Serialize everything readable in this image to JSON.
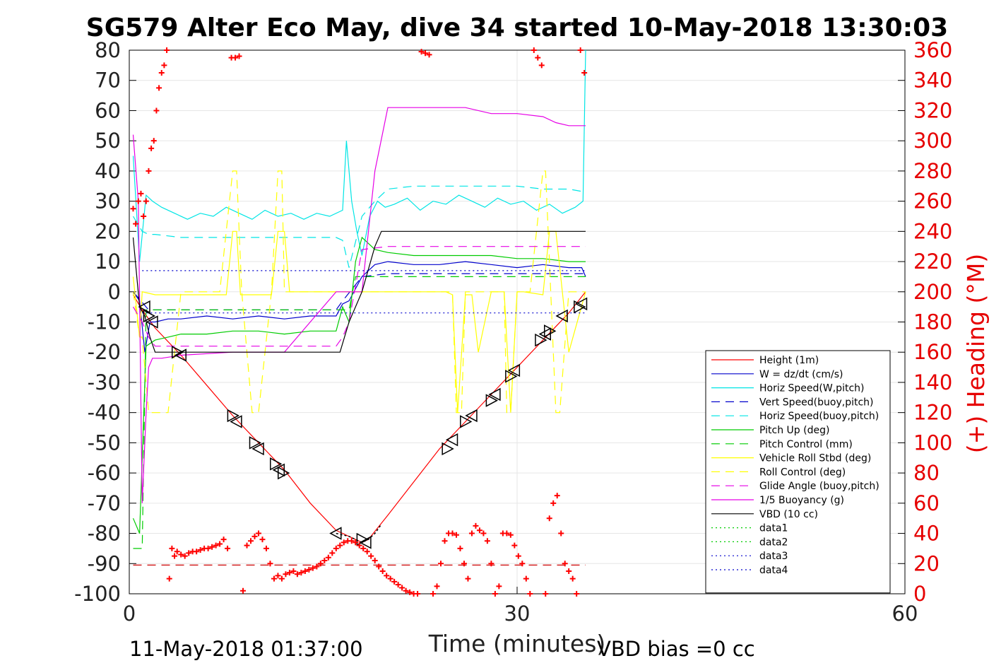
{
  "chart_data": {
    "type": "line",
    "title": "SG579 Alter Eco May, dive 34 started 10-May-2018 13:30:03",
    "xlabel": "Time (minutes)",
    "ylabel_right": "(+) Heading (°M)",
    "xlim": [
      0,
      60
    ],
    "ylim": [
      -100,
      80
    ],
    "ylim_right": [
      0,
      360
    ],
    "xticks": [
      "0",
      "30",
      "60"
    ],
    "yticks_left": [
      "80",
      "70",
      "60",
      "50",
      "40",
      "30",
      "20",
      "10",
      "0",
      "-10",
      "-20",
      "-30",
      "-40",
      "-50",
      "-60",
      "-70",
      "-80",
      "-90",
      "-100"
    ],
    "yticks_right": [
      "360",
      "340",
      "320",
      "300",
      "280",
      "260",
      "240",
      "220",
      "200",
      "180",
      "160",
      "140",
      "120",
      "100",
      "80",
      "60",
      "40",
      "20",
      "0"
    ],
    "grid": true,
    "legend_position": "lower-right",
    "footer_left": "11-May-2018 01:37:00",
    "footer_right": "VBD bias =0 cc",
    "series": [
      {
        "name": "Height (1m)",
        "color": "#ff0000",
        "dash": "",
        "x": [
          0.3,
          1,
          2,
          4,
          6,
          8,
          10,
          12,
          14,
          16,
          18,
          18.5,
          20,
          22,
          24,
          26,
          28,
          30,
          32,
          34,
          35.3
        ],
        "y": [
          -1,
          -6,
          -12,
          -21,
          -31,
          -41,
          -50,
          -59,
          -70,
          -79,
          -83,
          -82,
          -74,
          -63,
          -52,
          -43,
          -34,
          -25,
          -16,
          -7,
          0
        ]
      },
      {
        "name": "W = dz/dt (cm/s)",
        "color": "#0000cc",
        "dash": "",
        "x": [
          0.3,
          0.8,
          1.2,
          1.6,
          2,
          3,
          4,
          6,
          8,
          10,
          12,
          14,
          16,
          16.5,
          17,
          18,
          19,
          20,
          22,
          24,
          26,
          28,
          30,
          32,
          34,
          35,
          35.3
        ],
        "y": [
          0,
          -3,
          -20,
          -10,
          -10,
          -9,
          -9,
          -8,
          -9,
          -8,
          -9,
          -8,
          -8,
          -4,
          -3,
          5,
          9,
          10,
          9,
          9,
          10,
          9,
          8,
          9,
          8,
          8,
          5
        ]
      },
      {
        "name": "Horiz Speed(W,pitch)",
        "color": "#00e5e5",
        "dash": "",
        "x": [
          0.3,
          0.8,
          1.3,
          1.8,
          2.5,
          3.5,
          4.5,
          5.5,
          6.5,
          7.5,
          8.5,
          9.5,
          10.5,
          11.5,
          12.5,
          13.5,
          14.5,
          15.5,
          16.5,
          16.8,
          17.2,
          17.6,
          18,
          18.6,
          19.2,
          19.8,
          20.5,
          21.5,
          22.5,
          23.5,
          24.5,
          25.5,
          26.5,
          27.5,
          28.5,
          29.5,
          30.5,
          31.5,
          32.5,
          33.5,
          34.5,
          35.1,
          35.3
        ],
        "y": [
          45,
          10,
          32,
          30,
          28,
          26,
          24,
          26,
          25,
          28,
          26,
          24,
          27,
          25,
          26,
          24,
          26,
          25,
          27,
          50,
          30,
          20,
          12,
          25,
          30,
          28,
          29,
          31,
          27,
          30,
          29,
          32,
          30,
          28,
          31,
          29,
          30,
          27,
          29,
          26,
          28,
          30,
          80
        ]
      },
      {
        "name": "Vert Speed(buoy,pitch)",
        "color": "#0000cc",
        "dash": "12,8",
        "x": [
          0.3,
          1.5,
          2,
          4,
          8,
          12,
          16,
          16.5,
          18,
          20,
          24,
          28,
          32,
          35.3
        ],
        "y": [
          0,
          -6,
          -6,
          -6,
          -6,
          -6,
          -6,
          -3,
          5,
          6,
          6,
          6,
          6,
          6
        ]
      },
      {
        "name": "Horiz Speed(buoy,pitch)",
        "color": "#00e5e5",
        "dash": "12,8",
        "x": [
          0.3,
          1,
          1.5,
          2,
          4,
          8,
          12,
          16,
          16.5,
          17,
          18,
          19,
          20,
          22,
          24,
          26,
          28,
          30,
          32,
          34,
          35.3
        ],
        "y": [
          25,
          20,
          19,
          19,
          18,
          18,
          18,
          18,
          17,
          8,
          25,
          30,
          34,
          35,
          35,
          35,
          35,
          35,
          34,
          34,
          33
        ]
      },
      {
        "name": "Pitch Up (deg)",
        "color": "#00cc00",
        "dash": "",
        "x": [
          0.3,
          0.8,
          1.3,
          2,
          3,
          4,
          6,
          8,
          10,
          12,
          14,
          16,
          16.5,
          17,
          17.5,
          18,
          19,
          20,
          22,
          24,
          26,
          28,
          30,
          32,
          34,
          35,
          35.3
        ],
        "y": [
          -75,
          -80,
          -18,
          -16,
          -15,
          -14,
          -14,
          -13,
          -13,
          -14,
          -13,
          -13,
          -5,
          -10,
          10,
          18,
          14,
          13,
          12,
          12,
          12,
          12,
          11,
          11,
          10,
          10,
          10
        ]
      },
      {
        "name": "Pitch Control (mm)",
        "color": "#00cc00",
        "dash": "12,8",
        "x": [
          0.3,
          0.6,
          1,
          1.3,
          1.8,
          4,
          8,
          12,
          16,
          16.5,
          17,
          17.5,
          18,
          19,
          24,
          30,
          35.3
        ],
        "y": [
          -85,
          -85,
          -85,
          -6,
          -6,
          -6,
          -6,
          -6,
          -6,
          -6,
          -6,
          5,
          5,
          5,
          5,
          5,
          5
        ]
      },
      {
        "name": "Vehicle Roll Stbd (deg)",
        "color": "#ffff00",
        "dash": "",
        "x": [
          0.3,
          0.8,
          1,
          2,
          3,
          4,
          6,
          7.5,
          8,
          8.3,
          8.6,
          9,
          11,
          11.5,
          12,
          12.4,
          12.8,
          14,
          16,
          18,
          20,
          22,
          24,
          24.5,
          25,
          25.4,
          26,
          26.5,
          27,
          28,
          29,
          29.5,
          30,
          30.5,
          32,
          32.5,
          33,
          34,
          35.3
        ],
        "y": [
          5,
          -15,
          0,
          -1,
          -1,
          -1,
          -1,
          -1,
          20,
          20,
          -1,
          -1,
          -1,
          20,
          20,
          0,
          0,
          0,
          0,
          0,
          0,
          0,
          0,
          0,
          -1,
          -40,
          -1,
          -1,
          -20,
          0,
          0,
          -40,
          0,
          0,
          -1,
          20,
          20,
          -20,
          0
        ]
      },
      {
        "name": "Roll Control (deg)",
        "color": "#ffff00",
        "dash": "12,8",
        "x": [
          0.3,
          0.8,
          1,
          1.5,
          2,
          2.5,
          3,
          4,
          7,
          8,
          8.3,
          8.7,
          9.5,
          10,
          11,
          11.5,
          11.8,
          12,
          14,
          16,
          18,
          20,
          24,
          25,
          25.3,
          25.7,
          26,
          28,
          29,
          29.2,
          29.5,
          30,
          31,
          32,
          32.2,
          33,
          33.3,
          34,
          35.3
        ],
        "y": [
          0,
          -15,
          -15,
          -40,
          -40,
          -40,
          -40,
          0,
          0,
          40,
          40,
          0,
          -40,
          -40,
          0,
          40,
          40,
          0,
          0,
          0,
          0,
          0,
          0,
          0,
          -40,
          -40,
          0,
          0,
          0,
          -40,
          -40,
          0,
          0,
          40,
          40,
          -40,
          -40,
          0,
          0
        ]
      },
      {
        "name": "Glide Angle (buoy,pitch)",
        "color": "#e600e6",
        "dash": "12,8",
        "x": [
          0.3,
          1,
          1.5,
          2,
          4,
          8,
          12,
          16,
          16.5,
          17,
          18,
          20,
          24,
          28,
          32,
          35.3
        ],
        "y": [
          -5,
          -10,
          -15,
          -18,
          -18,
          -18,
          -18,
          -18,
          -15,
          -10,
          14,
          15,
          15,
          15,
          15,
          15
        ]
      },
      {
        "name": "1/5 Buoyancy (g)",
        "color": "#e600e6",
        "dash": "",
        "x": [
          0.3,
          0.7,
          1,
          1.3,
          1.5,
          1.8,
          2.5,
          4,
          8,
          12,
          16,
          16.5,
          17,
          18,
          19,
          20,
          22,
          24,
          26,
          28,
          30,
          32,
          33,
          34,
          35.3
        ],
        "y": [
          52,
          30,
          -70,
          -40,
          -25,
          -22,
          -22,
          -21,
          -20,
          -20,
          0,
          0,
          0,
          0,
          40,
          61,
          61,
          61,
          61,
          59,
          59,
          58,
          56,
          55,
          55
        ]
      },
      {
        "name": "VBD (10 cc)",
        "color": "#000000",
        "dash": "",
        "x": [
          0.3,
          0.8,
          1.2,
          1.6,
          2,
          3,
          4,
          6,
          8,
          10,
          12,
          14,
          16,
          16.3,
          17,
          18,
          19,
          19.5,
          20,
          22,
          26,
          30,
          35.3
        ],
        "y": [
          18,
          -5,
          -8,
          -15,
          -20,
          -20,
          -20,
          -20,
          -20,
          -20,
          -20,
          -20,
          -20,
          -20,
          -10,
          0,
          15,
          20,
          20,
          20,
          20,
          20,
          20
        ]
      },
      {
        "name": "data1",
        "color": "#00cc00",
        "dash": "2,4",
        "x": [],
        "y": []
      },
      {
        "name": "data2",
        "color": "#00cc00",
        "dash": "2,4",
        "x": [],
        "y": []
      },
      {
        "name": "data3",
        "color": "#0000cc",
        "dash": "2,4",
        "x": [
          1,
          35.3
        ],
        "y": [
          7,
          7
        ]
      },
      {
        "name": "data4",
        "color": "#0000cc",
        "dash": "2,4",
        "x": [
          1,
          35.3
        ],
        "y": [
          -7,
          -7
        ]
      }
    ],
    "dive_depth": {
      "color": "#000000",
      "x": [
        16,
        17,
        17.5,
        18,
        18.5,
        19,
        19.5
      ],
      "y": [
        -80,
        -81,
        -82,
        -83,
        -82,
        -80,
        -77
      ]
    },
    "target_line": {
      "color": "#cc0000",
      "dash": "12,8",
      "x": [
        0.3,
        35.3
      ],
      "y": [
        -90.5,
        -90.5
      ]
    },
    "markers": {
      "color": "#000000",
      "x": [
        1.2,
        1.5,
        1.8,
        3.7,
        4,
        8,
        8.3,
        9.7,
        10,
        11.3,
        11.6,
        11.9,
        16,
        18,
        18.3,
        24.6,
        25,
        26,
        26.5,
        28,
        28.3,
        29.5,
        29.8,
        31.8,
        32.2,
        32.5,
        33.5,
        34.8,
        35
      ],
      "y": [
        -5,
        -8,
        -10,
        -20,
        -21,
        -41,
        -43,
        -50,
        -52,
        -57,
        -59,
        -60,
        -80,
        -82,
        -83,
        -52,
        -49,
        -43,
        -41,
        -36,
        -34,
        -28,
        -26,
        -16,
        -14,
        -13,
        -8,
        -5,
        -4
      ]
    },
    "heading": {
      "color": "#ff0000",
      "x": [
        0.3,
        0.5,
        0.7,
        0.9,
        1.1,
        1.3,
        1.5,
        1.7,
        1.9,
        2.1,
        2.3,
        2.5,
        2.7,
        2.9,
        3.1,
        3.3,
        3.5,
        3.7,
        4,
        4.3,
        4.6,
        4.9,
        5.2,
        5.5,
        5.8,
        6.1,
        6.4,
        6.7,
        7,
        7.3,
        7.6,
        7.9,
        8.2,
        8.5,
        8.8,
        9.1,
        9.4,
        9.7,
        10,
        10.3,
        10.6,
        10.9,
        11.2,
        11.5,
        11.8,
        12.1,
        12.4,
        12.7,
        13,
        13.3,
        13.6,
        13.9,
        14.2,
        14.5,
        14.8,
        15.1,
        15.4,
        15.7,
        16,
        16.3,
        16.6,
        16.9,
        17.2,
        17.5,
        17.8,
        18.1,
        18.4,
        18.7,
        19,
        19.3,
        19.6,
        19.9,
        20.2,
        20.5,
        20.8,
        21.1,
        21.4,
        21.7,
        22,
        22.3,
        22.6,
        22.9,
        23.2,
        23.5,
        23.8,
        24.1,
        24.4,
        24.7,
        25,
        25.3,
        25.6,
        25.9,
        26.2,
        26.5,
        26.8,
        27.1,
        27.4,
        27.7,
        28,
        28.3,
        28.6,
        28.9,
        29.2,
        29.5,
        29.8,
        30.1,
        30.4,
        30.7,
        31,
        31.3,
        31.6,
        31.9,
        32.2,
        32.5,
        32.8,
        33.1,
        33.4,
        33.7,
        34,
        34.3,
        34.6,
        34.9,
        35.2
      ],
      "y": [
        255,
        245,
        260,
        265,
        250,
        260,
        280,
        295,
        300,
        320,
        335,
        345,
        350,
        360,
        10,
        30,
        25,
        28,
        26,
        25,
        27,
        28,
        28,
        29,
        30,
        30,
        31,
        32,
        33,
        36,
        30,
        355,
        355,
        356,
        2,
        32,
        35,
        38,
        40,
        36,
        30,
        20,
        10,
        12,
        10,
        13,
        14,
        15,
        13,
        14,
        15,
        16,
        17,
        18,
        20,
        22,
        24,
        27,
        30,
        32,
        34,
        35,
        35,
        34,
        32,
        30,
        28,
        25,
        22,
        18,
        15,
        12,
        10,
        8,
        6,
        4,
        2,
        1,
        0,
        0,
        359,
        358,
        357,
        0,
        5,
        20,
        35,
        40,
        40,
        39,
        30,
        20,
        10,
        40,
        45,
        42,
        40,
        35,
        20,
        0,
        5,
        40,
        40,
        39,
        32,
        25,
        20,
        10,
        0,
        360,
        355,
        350,
        0,
        50,
        60,
        65,
        40,
        20,
        15,
        10,
        0,
        360,
        345
      ]
    }
  }
}
